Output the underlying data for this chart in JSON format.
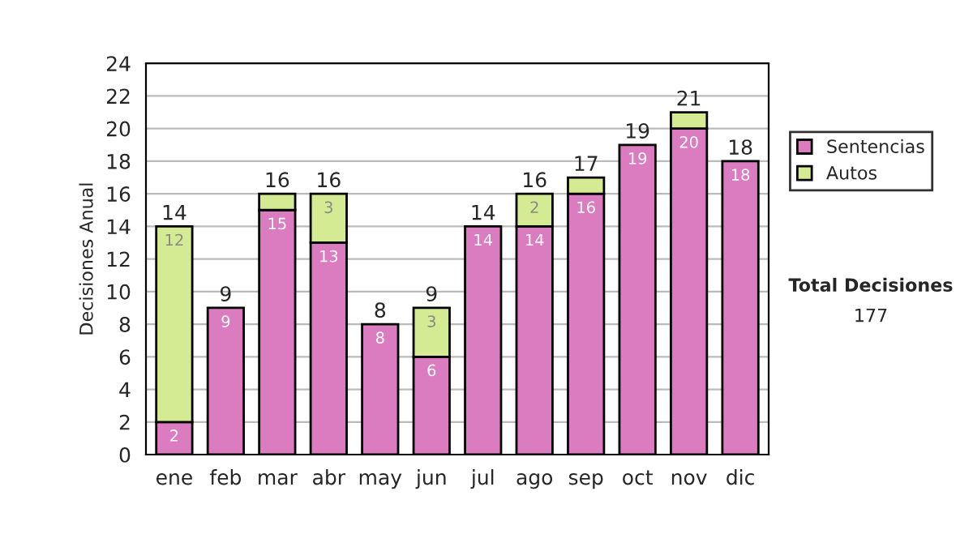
{
  "chart_data": {
    "type": "bar",
    "stacked": true,
    "ylabel": "Decisiones Anual",
    "categories": [
      "ene",
      "feb",
      "mar",
      "abr",
      "may",
      "jun",
      "jul",
      "ago",
      "sep",
      "oct",
      "nov",
      "dic"
    ],
    "series": [
      {
        "name": "Sentencias",
        "color": "#db7cc0",
        "values": [
          2,
          9,
          15,
          13,
          8,
          6,
          14,
          14,
          16,
          19,
          20,
          18
        ],
        "value_labels": [
          "2",
          "9",
          "15",
          "13",
          "8",
          "6",
          "14",
          "14",
          "16",
          "19",
          "20",
          "18"
        ]
      },
      {
        "name": "Autos",
        "color": "#d4eb94",
        "values": [
          12,
          null,
          1,
          3,
          null,
          3,
          null,
          2,
          1,
          null,
          1,
          null
        ],
        "value_labels": [
          "12",
          null,
          null,
          "3",
          null,
          "3",
          null,
          "2",
          null,
          null,
          null,
          null
        ]
      }
    ],
    "totals": [
      "14",
      "9",
      "16",
      "16",
      "8",
      "9",
      "14",
      "16",
      "17",
      "19",
      "21",
      "18"
    ],
    "ylim": [
      0,
      24
    ],
    "yticks": [
      0,
      2,
      4,
      6,
      8,
      10,
      12,
      14,
      16,
      18,
      20,
      22,
      24
    ],
    "grid": "y",
    "legend": "right",
    "annotations": [
      "Total Decisiones",
      "177"
    ]
  }
}
